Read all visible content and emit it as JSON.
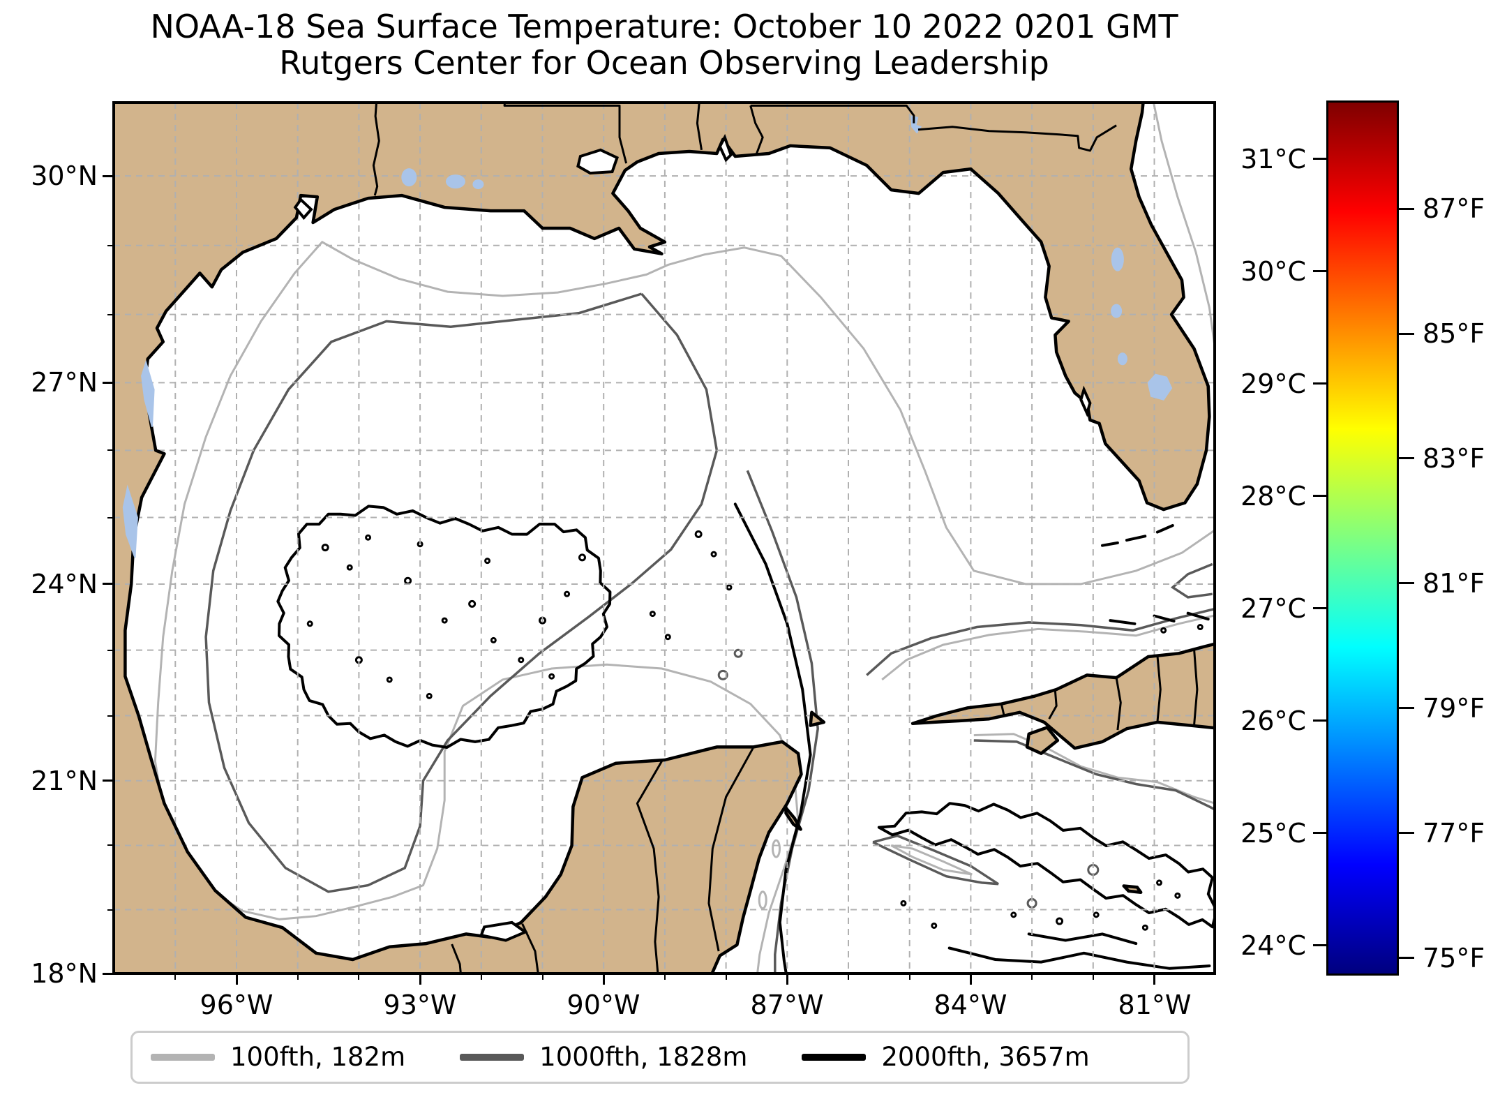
{
  "title": {
    "line1": "NOAA-18 Sea Surface Temperature: October 10 2022 0201 GMT",
    "line2": "Rutgers Center for Ocean Observing Leadership"
  },
  "x_axis": {
    "major_ticks": [
      {
        "label": "96°W",
        "deg_west": 96
      },
      {
        "label": "93°W",
        "deg_west": 93
      },
      {
        "label": "90°W",
        "deg_west": 90
      },
      {
        "label": "87°W",
        "deg_west": 87
      },
      {
        "label": "84°W",
        "deg_west": 84
      },
      {
        "label": "81°W",
        "deg_west": 81
      }
    ],
    "minor_tick_degs_west": [
      97,
      95,
      94,
      92,
      91,
      89,
      88,
      86,
      85,
      83,
      82
    ]
  },
  "y_axis": {
    "major_ticks": [
      {
        "label": "30°N",
        "deg_north": 30
      },
      {
        "label": "27°N",
        "deg_north": 27
      },
      {
        "label": "24°N",
        "deg_north": 24
      },
      {
        "label": "21°N",
        "deg_north": 21
      },
      {
        "label": "18°N",
        "deg_north": 18
      }
    ],
    "minor_tick_degs_north": [
      19,
      20,
      22,
      23,
      25,
      26,
      28,
      29
    ]
  },
  "gridlines": {
    "lon_degs_west": [
      97,
      96,
      95,
      94,
      93,
      92,
      91,
      90,
      89,
      88,
      87,
      86,
      85,
      84,
      83,
      82,
      81
    ],
    "lat_degs_north": [
      19,
      20,
      21,
      22,
      23,
      24,
      25,
      26,
      27,
      28,
      29,
      30
    ]
  },
  "colorbar": {
    "colormap": "jet",
    "top_value_c": 31.5,
    "bottom_value_c": 23.75,
    "celsius_ticks": [
      {
        "label": "31°C",
        "c": 31
      },
      {
        "label": "30°C",
        "c": 30
      },
      {
        "label": "29°C",
        "c": 29
      },
      {
        "label": "28°C",
        "c": 28
      },
      {
        "label": "27°C",
        "c": 27
      },
      {
        "label": "26°C",
        "c": 26
      },
      {
        "label": "25°C",
        "c": 25
      },
      {
        "label": "24°C",
        "c": 24
      }
    ],
    "fahrenheit_ticks": [
      {
        "label": "87°F",
        "f": 87
      },
      {
        "label": "85°F",
        "f": 85
      },
      {
        "label": "83°F",
        "f": 83
      },
      {
        "label": "81°F",
        "f": 81
      },
      {
        "label": "79°F",
        "f": 79
      },
      {
        "label": "77°F",
        "f": 77
      },
      {
        "label": "75°F",
        "f": 75
      }
    ]
  },
  "legend": {
    "items": [
      {
        "label": "100fth, 182m",
        "color": "#b3b3b3"
      },
      {
        "label": "1000fth, 1828m",
        "color": "#595959"
      },
      {
        "label": "2000fth, 3657m",
        "color": "#000000"
      }
    ]
  },
  "colors": {
    "land": "#d2b48c",
    "lake": "#a9c4e9",
    "water": "#ffffff",
    "grid": "#b0b0b0",
    "coast": "#000000",
    "contour_100fth": "#b3b3b3",
    "contour_1000fth": "#595959",
    "contour_2000fth": "#000000"
  }
}
